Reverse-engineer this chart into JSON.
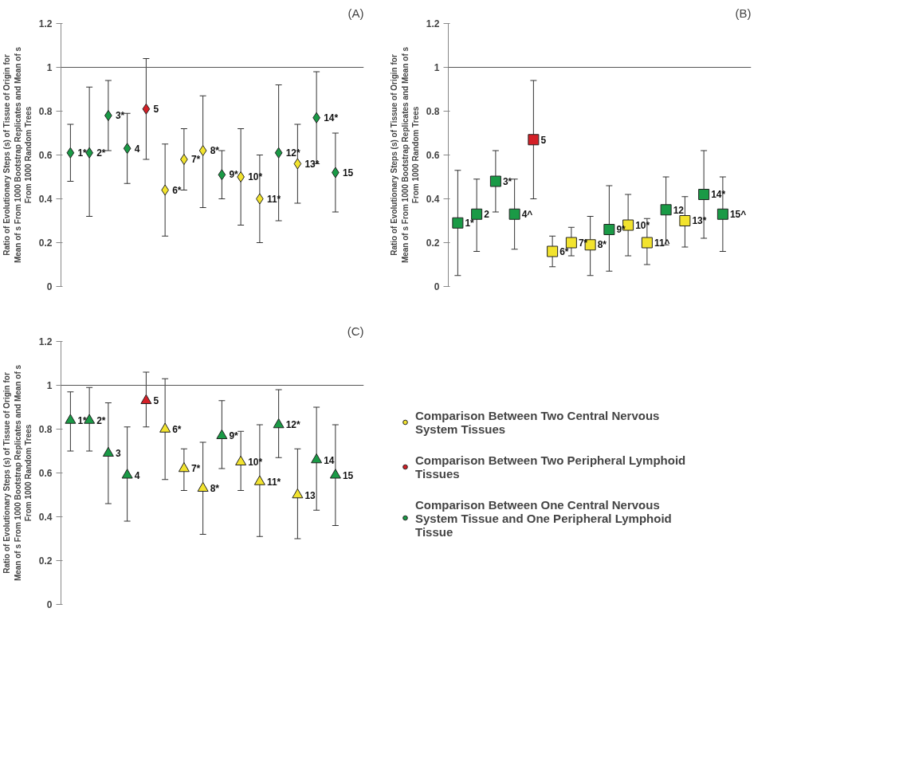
{
  "chart_data": [
    {
      "type": "scatter",
      "title": "(A)",
      "ylabel": "Ratio of Evolutionary Steps (s) of Tissue of Origin for Mean of s From 1000 Bootstrap Replicates and Mean of s From 1000 Random Trees",
      "categories": [
        null,
        null,
        null,
        null,
        null,
        null,
        null,
        null,
        null,
        null,
        null,
        null,
        null,
        null,
        null,
        null
      ],
      "ylim": [
        0,
        1.2
      ],
      "yticks": [
        0,
        0.2,
        0.4,
        0.6,
        0.8,
        1,
        1.2
      ],
      "grid": false,
      "legend": false,
      "tick_labels": "y",
      "marker": "diamond",
      "ref_lines": [
        {
          "axis": "y",
          "value": 1,
          "color": "#555555"
        }
      ],
      "series": [
        {
          "color": "#f2e32e",
          "values": [
            null,
            null,
            null,
            null,
            null,
            0.44,
            0.58,
            0.62,
            null,
            0.5,
            0.4,
            null,
            0.56,
            null,
            null,
            null
          ],
          "errors": [
            null,
            null,
            null,
            null,
            null,
            [
              0.23,
              0.65
            ],
            [
              0.44,
              0.72
            ],
            [
              0.36,
              0.87
            ],
            null,
            [
              0.28,
              0.72
            ],
            [
              0.2,
              0.6
            ],
            null,
            [
              0.38,
              0.74
            ],
            null,
            null,
            null
          ]
        },
        {
          "color": "#d42027",
          "values": [
            null,
            null,
            null,
            null,
            0.81,
            null,
            null,
            null,
            null,
            null,
            null,
            null,
            null,
            null,
            null,
            null
          ],
          "errors": [
            null,
            null,
            null,
            null,
            [
              0.58,
              1.04
            ],
            null,
            null,
            null,
            null,
            null,
            null,
            null,
            null,
            null,
            null,
            null
          ]
        },
        {
          "color": "#1a9a46",
          "values": [
            0.61,
            0.61,
            0.78,
            0.63,
            null,
            null,
            null,
            null,
            0.51,
            null,
            null,
            0.61,
            null,
            0.77,
            0.52,
            null
          ],
          "errors": [
            [
              0.48,
              0.74
            ],
            [
              0.32,
              0.91
            ],
            [
              0.62,
              0.94
            ],
            [
              0.47,
              0.79
            ],
            null,
            null,
            null,
            null,
            [
              0.4,
              0.62
            ],
            null,
            null,
            [
              0.3,
              0.92
            ],
            null,
            [
              0.56,
              0.98
            ],
            [
              0.34,
              0.7
            ],
            null
          ]
        }
      ],
      "annotations": [
        "1*",
        "2*",
        "3*",
        "4",
        "5",
        "6*",
        "7*",
        "8*",
        "9*",
        "10*",
        "11*",
        "12*",
        "13*",
        "14*",
        "15"
      ]
    },
    {
      "type": "scatter",
      "title": "(B)",
      "ylabel": "Ratio of Evolutionary Steps (s) of Tissue of Origin for Mean of s From 1000 Bootstrap Replicates and Mean of s From 1000 Random Trees",
      "categories": [
        null,
        null,
        null,
        null,
        null,
        null,
        null,
        null,
        null,
        null,
        null,
        null,
        null,
        null,
        null,
        null
      ],
      "ylim": [
        0,
        1.2
      ],
      "yticks": [
        0,
        0.2,
        0.4,
        0.6,
        0.8,
        1,
        1.2
      ],
      "grid": false,
      "legend": false,
      "tick_labels": "y",
      "marker": "square",
      "ref_lines": [
        {
          "axis": "y",
          "value": 1,
          "color": "#555555"
        }
      ],
      "series": [
        {
          "color": "#f2e32e",
          "values": [
            null,
            null,
            null,
            null,
            null,
            0.16,
            0.2,
            0.19,
            null,
            0.28,
            0.2,
            null,
            0.3,
            null,
            null,
            null
          ],
          "errors": [
            null,
            null,
            null,
            null,
            null,
            [
              0.09,
              0.23
            ],
            [
              0.14,
              0.27
            ],
            [
              0.05,
              0.32
            ],
            null,
            [
              0.14,
              0.42
            ],
            [
              0.1,
              0.31
            ],
            null,
            [
              0.18,
              0.41
            ],
            null,
            null,
            null
          ]
        },
        {
          "color": "#d42027",
          "values": [
            null,
            null,
            null,
            null,
            0.67,
            null,
            null,
            null,
            null,
            null,
            null,
            null,
            null,
            null,
            null,
            null
          ],
          "errors": [
            null,
            null,
            null,
            null,
            [
              0.4,
              0.94
            ],
            null,
            null,
            null,
            null,
            null,
            null,
            null,
            null,
            null,
            null,
            null
          ]
        },
        {
          "color": "#1a9a46",
          "values": [
            0.29,
            0.33,
            0.48,
            0.33,
            null,
            null,
            null,
            null,
            0.26,
            null,
            null,
            0.35,
            null,
            0.42,
            0.33,
            null
          ],
          "errors": [
            [
              0.05,
              0.53
            ],
            [
              0.16,
              0.49
            ],
            [
              0.34,
              0.62
            ],
            [
              0.17,
              0.49
            ],
            null,
            null,
            null,
            null,
            [
              0.07,
              0.46
            ],
            null,
            null,
            [
              0.19,
              0.5
            ],
            null,
            [
              0.22,
              0.62
            ],
            [
              0.16,
              0.5
            ],
            null
          ]
        }
      ],
      "annotations": [
        "1*",
        "2",
        "3*",
        "4^",
        "5",
        "6*",
        "7*",
        "8*",
        "9*",
        "10*",
        "11^",
        "12",
        "13*",
        "14*",
        "15^"
      ]
    },
    {
      "type": "scatter",
      "title": "(C)",
      "ylabel": "Ratio of Evolutionary Steps (s) of Tissue of Origin for Mean of s From 1000 Bootstrap Replicates and Mean of s From 1000 Random Trees",
      "categories": [
        null,
        null,
        null,
        null,
        null,
        null,
        null,
        null,
        null,
        null,
        null,
        null,
        null,
        null,
        null,
        null
      ],
      "ylim": [
        0,
        1.2
      ],
      "yticks": [
        0,
        0.2,
        0.4,
        0.6,
        0.8,
        1,
        1.2
      ],
      "grid": false,
      "legend": "right",
      "tick_labels": "y",
      "marker": "triangle",
      "ref_lines": [
        {
          "axis": "y",
          "value": 1,
          "color": "#555555"
        }
      ],
      "series": [
        {
          "name": "Comparison Between Two Central Nervous System Tissues",
          "color": "#f2e32e",
          "values": [
            null,
            null,
            null,
            null,
            null,
            0.8,
            0.62,
            0.53,
            null,
            0.65,
            0.56,
            null,
            0.5,
            null,
            null,
            null
          ],
          "errors": [
            null,
            null,
            null,
            null,
            null,
            [
              0.57,
              1.03
            ],
            [
              0.52,
              0.71
            ],
            [
              0.32,
              0.74
            ],
            null,
            [
              0.52,
              0.79
            ],
            [
              0.31,
              0.82
            ],
            null,
            [
              0.3,
              0.71
            ],
            null,
            null,
            null
          ]
        },
        {
          "name": "Comparison Between Two Peripheral Lymphoid Tissues",
          "color": "#d42027",
          "values": [
            null,
            null,
            null,
            null,
            0.93,
            null,
            null,
            null,
            null,
            null,
            null,
            null,
            null,
            null,
            null,
            null
          ],
          "errors": [
            null,
            null,
            null,
            null,
            [
              0.81,
              1.06
            ],
            null,
            null,
            null,
            null,
            null,
            null,
            null,
            null,
            null,
            null,
            null
          ]
        },
        {
          "name": "Comparison Between One Central Nervous System Tissue and One Peripheral Lymphoid Tissue",
          "color": "#1a9a46",
          "values": [
            0.84,
            0.84,
            0.69,
            0.59,
            null,
            null,
            null,
            null,
            0.77,
            null,
            null,
            0.82,
            null,
            0.66,
            0.59,
            null
          ],
          "errors": [
            [
              0.7,
              0.97
            ],
            [
              0.7,
              0.99
            ],
            [
              0.46,
              0.92
            ],
            [
              0.38,
              0.81
            ],
            null,
            null,
            null,
            null,
            [
              0.62,
              0.93
            ],
            null,
            null,
            [
              0.67,
              0.98
            ],
            null,
            [
              0.43,
              0.9
            ],
            [
              0.36,
              0.82
            ],
            null
          ]
        }
      ],
      "annotations": [
        "1*",
        "2*",
        "3",
        "4",
        "5",
        "6*",
        "7*",
        "8*",
        "9*",
        "10*",
        "11*",
        "12*",
        "13",
        "14",
        "15"
      ]
    }
  ]
}
